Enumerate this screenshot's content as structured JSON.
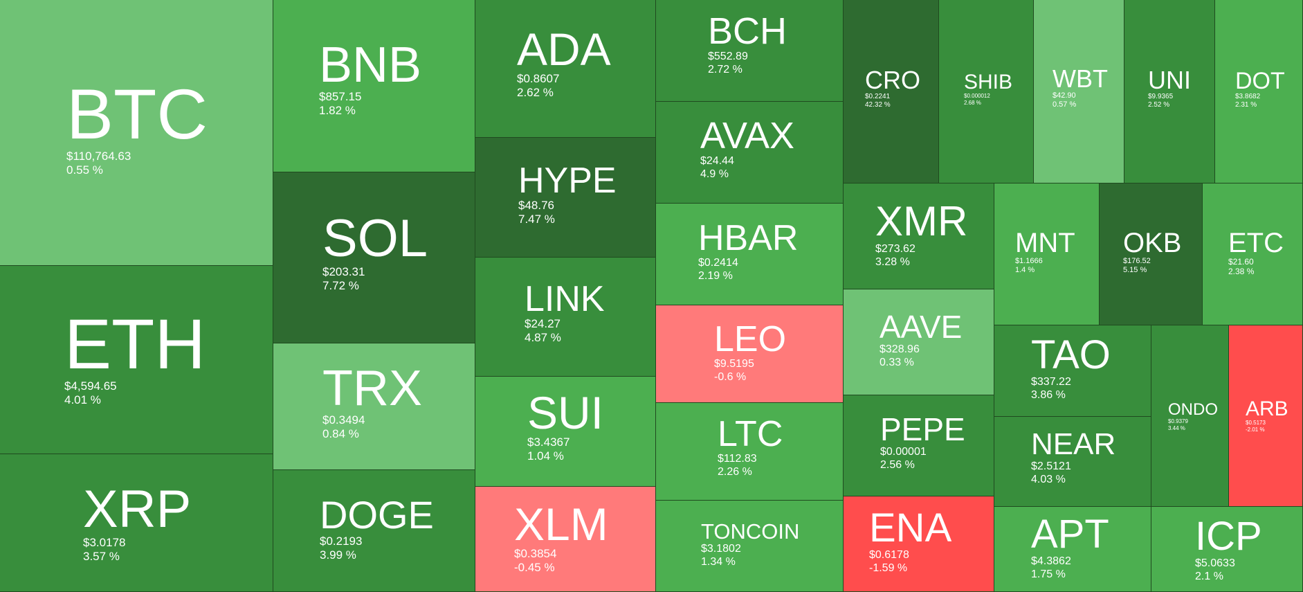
{
  "colors": {
    "up_light": "#6fc275",
    "up_mid": "#4caf50",
    "up_dark": "#388e3c",
    "up_darker": "#2e6b30",
    "down_light": "#ff7a7a",
    "down_strong": "#ff4d4d"
  },
  "tiles": [
    {
      "symbol": "BTC",
      "price": "$110,764.63",
      "change": "0.55 %",
      "color": "#6fc275"
    },
    {
      "symbol": "ETH",
      "price": "$4,594.65",
      "change": "4.01 %",
      "color": "#388e3c"
    },
    {
      "symbol": "XRP",
      "price": "$3.0178",
      "change": "3.57 %",
      "color": "#388e3c"
    },
    {
      "symbol": "BNB",
      "price": "$857.15",
      "change": "1.82 %",
      "color": "#4caf50"
    },
    {
      "symbol": "SOL",
      "price": "$203.31",
      "change": "7.72 %",
      "color": "#2e6b30"
    },
    {
      "symbol": "TRX",
      "price": "$0.3494",
      "change": "0.84 %",
      "color": "#6fc275"
    },
    {
      "symbol": "DOGE",
      "price": "$0.2193",
      "change": "3.99 %",
      "color": "#388e3c"
    },
    {
      "symbol": "ADA",
      "price": "$0.8607",
      "change": "2.62 %",
      "color": "#388e3c"
    },
    {
      "symbol": "HYPE",
      "price": "$48.76",
      "change": "7.47 %",
      "color": "#2e6b30"
    },
    {
      "symbol": "LINK",
      "price": "$24.27",
      "change": "4.87 %",
      "color": "#388e3c"
    },
    {
      "symbol": "SUI",
      "price": "$3.4367",
      "change": "1.04 %",
      "color": "#4caf50"
    },
    {
      "symbol": "XLM",
      "price": "$0.3854",
      "change": "-0.45 %",
      "color": "#ff7a7a"
    },
    {
      "symbol": "BCH",
      "price": "$552.89",
      "change": "2.72 %",
      "color": "#388e3c"
    },
    {
      "symbol": "AVAX",
      "price": "$24.44",
      "change": "4.9 %",
      "color": "#388e3c"
    },
    {
      "symbol": "HBAR",
      "price": "$0.2414",
      "change": "2.19 %",
      "color": "#4caf50"
    },
    {
      "symbol": "LEO",
      "price": "$9.5195",
      "change": "-0.6 %",
      "color": "#ff7a7a"
    },
    {
      "symbol": "LTC",
      "price": "$112.83",
      "change": "2.26 %",
      "color": "#4caf50"
    },
    {
      "symbol": "TONCOIN",
      "price": "$3.1802",
      "change": "1.34 %",
      "color": "#4caf50"
    },
    {
      "symbol": "CRO",
      "price": "$0.2241",
      "change": "42.32 %",
      "color": "#2e6b30"
    },
    {
      "symbol": "SHIB",
      "price": "$0.000012",
      "change": "2.68 %",
      "color": "#388e3c"
    },
    {
      "symbol": "WBT",
      "price": "$42.90",
      "change": "0.57 %",
      "color": "#6fc275"
    },
    {
      "symbol": "UNI",
      "price": "$9.9365",
      "change": "2.52 %",
      "color": "#388e3c"
    },
    {
      "symbol": "DOT",
      "price": "$3.8682",
      "change": "2.31 %",
      "color": "#4caf50"
    },
    {
      "symbol": "XMR",
      "price": "$273.62",
      "change": "3.28 %",
      "color": "#388e3c"
    },
    {
      "symbol": "AAVE",
      "price": "$328.96",
      "change": "0.33 %",
      "color": "#6fc275"
    },
    {
      "symbol": "PEPE",
      "price": "$0.00001",
      "change": "2.56 %",
      "color": "#388e3c"
    },
    {
      "symbol": "ENA",
      "price": "$0.6178",
      "change": "-1.59 %",
      "color": "#ff4d4d"
    },
    {
      "symbol": "MNT",
      "price": "$1.1666",
      "change": "1.4 %",
      "color": "#4caf50"
    },
    {
      "symbol": "OKB",
      "price": "$176.52",
      "change": "5.15 %",
      "color": "#2e6b30"
    },
    {
      "symbol": "ETC",
      "price": "$21.60",
      "change": "2.38 %",
      "color": "#4caf50"
    },
    {
      "symbol": "TAO",
      "price": "$337.22",
      "change": "3.86 %",
      "color": "#388e3c"
    },
    {
      "symbol": "NEAR",
      "price": "$2.5121",
      "change": "4.03 %",
      "color": "#388e3c"
    },
    {
      "symbol": "APT",
      "price": "$4.3862",
      "change": "1.75 %",
      "color": "#4caf50"
    },
    {
      "symbol": "ONDO",
      "price": "$0.9379",
      "change": "3.44 %",
      "color": "#388e3c"
    },
    {
      "symbol": "ARB",
      "price": "$0.5173",
      "change": "-2.01 %",
      "color": "#ff4d4d"
    },
    {
      "symbol": "ICP",
      "price": "$5.0633",
      "change": "2.1 %",
      "color": "#4caf50"
    }
  ]
}
